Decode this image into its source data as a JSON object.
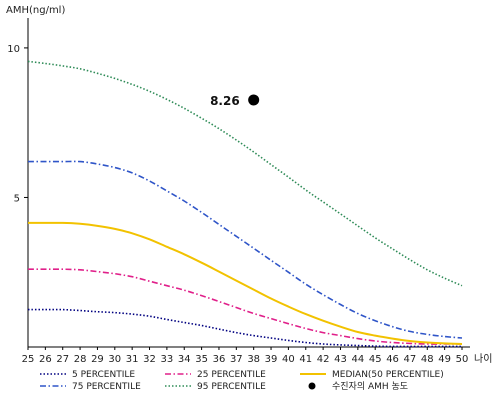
{
  "chart_data": {
    "type": "line",
    "ylabel": "AMH(ng/ml)",
    "xlabel": "나이",
    "xlim": [
      25,
      50
    ],
    "ylim": [
      0,
      11
    ],
    "y_ticks": [
      5,
      10
    ],
    "x": [
      25,
      26,
      27,
      28,
      29,
      30,
      31,
      32,
      33,
      34,
      35,
      36,
      37,
      38,
      39,
      40,
      41,
      42,
      43,
      44,
      45,
      46,
      47,
      48,
      49,
      50
    ],
    "series": [
      {
        "name": "5 PERCENTILE",
        "color": "#000080",
        "dash": "dotted",
        "values": [
          1.25,
          1.25,
          1.25,
          1.22,
          1.18,
          1.15,
          1.1,
          1.03,
          0.92,
          0.82,
          0.72,
          0.6,
          0.48,
          0.38,
          0.3,
          0.22,
          0.15,
          0.1,
          0.07,
          0.05,
          0.03,
          0.02,
          0.02,
          0.02,
          0.02,
          0.02
        ]
      },
      {
        "name": "25 PERCENTILE",
        "color": "#e0208a",
        "dash": "dashdot",
        "values": [
          2.6,
          2.6,
          2.6,
          2.58,
          2.52,
          2.45,
          2.35,
          2.2,
          2.05,
          1.9,
          1.72,
          1.52,
          1.32,
          1.12,
          0.95,
          0.78,
          0.62,
          0.48,
          0.38,
          0.28,
          0.2,
          0.15,
          0.12,
          0.1,
          0.1,
          0.1
        ]
      },
      {
        "name": "MEDIAN(50 PERCENTILE)",
        "color": "#f2c200",
        "dash": "solid",
        "values": [
          4.15,
          4.15,
          4.15,
          4.12,
          4.05,
          3.95,
          3.8,
          3.6,
          3.35,
          3.1,
          2.82,
          2.52,
          2.22,
          1.92,
          1.62,
          1.35,
          1.1,
          0.88,
          0.68,
          0.5,
          0.38,
          0.28,
          0.2,
          0.15,
          0.12,
          0.1
        ]
      },
      {
        "name": "75 PERCENTILE",
        "color": "#2f55c8",
        "dash": "dashdot",
        "values": [
          6.2,
          6.2,
          6.2,
          6.2,
          6.12,
          6.0,
          5.82,
          5.55,
          5.22,
          4.88,
          4.5,
          4.1,
          3.7,
          3.3,
          2.9,
          2.5,
          2.1,
          1.75,
          1.42,
          1.12,
          0.88,
          0.68,
          0.52,
          0.42,
          0.35,
          0.3
        ]
      },
      {
        "name": "95 PERCENTILE",
        "color": "#2e8b57",
        "dash": "dotted",
        "values": [
          9.55,
          9.48,
          9.4,
          9.3,
          9.15,
          8.98,
          8.78,
          8.55,
          8.28,
          7.98,
          7.65,
          7.3,
          6.92,
          6.52,
          6.1,
          5.68,
          5.25,
          4.85,
          4.45,
          4.05,
          3.65,
          3.28,
          2.92,
          2.58,
          2.3,
          2.05
        ]
      }
    ],
    "marker": {
      "name": "수진자의 AMH 농도",
      "x": 38,
      "y": 8.26,
      "label": "8.26",
      "color": "#000000"
    },
    "legend": {
      "position": "bottom",
      "order": [
        "5 PERCENTILE",
        "25 PERCENTILE",
        "MEDIAN(50 PERCENTILE)",
        "75 PERCENTILE",
        "95 PERCENTILE",
        "수진자의 AMH 농도"
      ]
    },
    "grid": false
  }
}
